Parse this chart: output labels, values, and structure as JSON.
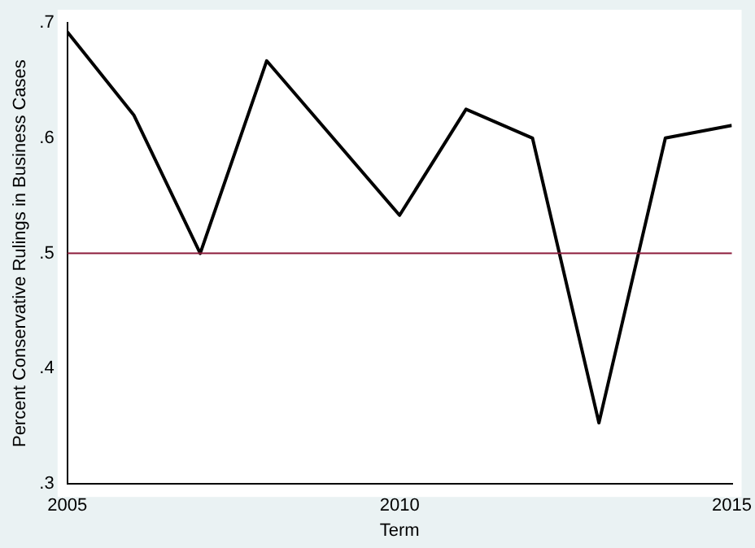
{
  "chart_data": {
    "type": "line",
    "xlabel": "Term",
    "ylabel": "Percent Conservative Rulings in Business Cases",
    "x": [
      2005,
      2006,
      2007,
      2008,
      2010,
      2011,
      2012,
      2013,
      2014,
      2015
    ],
    "series": [
      {
        "color": "#000000",
        "values": [
          0.692,
          0.62,
          0.5,
          0.667,
          0.533,
          0.625,
          0.6,
          0.353,
          0.6,
          0.611
        ]
      }
    ],
    "xlim": [
      2005,
      2015
    ],
    "xticks": [
      2005,
      2010,
      2015
    ],
    "ylim": [
      0.3,
      0.7
    ],
    "yticks": [
      {
        "value": 0.3,
        "label": ".3"
      },
      {
        "value": 0.4,
        "label": ".4"
      },
      {
        "value": 0.5,
        "label": ".5"
      },
      {
        "value": 0.6,
        "label": ".6"
      },
      {
        "value": 0.7,
        "label": ".7"
      }
    ],
    "ref_lines": [
      {
        "axis": "y",
        "value": 0.5,
        "color": "#8b1a3a"
      }
    ],
    "grid": false,
    "legend": false,
    "marker": "none"
  }
}
